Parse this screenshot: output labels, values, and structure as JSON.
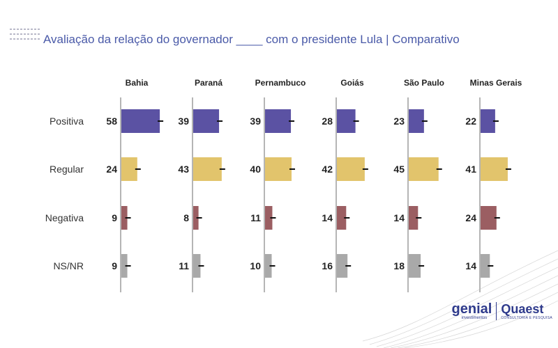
{
  "title": "Avaliação da relação do governador ____ com o presidente Lula | Comparativo",
  "brand": {
    "genial_name": "genial",
    "genial_sub": "investimentos",
    "quaest_name": "Quaest",
    "quaest_sub": "CONSULTORIA E PESQUISA"
  },
  "colors": {
    "Positiva": "#5b52a3",
    "Regular": "#e2c46c",
    "Negativa": "#9b5e62",
    "NS/NR": "#a9a9a9",
    "title": "#4a5aa8",
    "brand": "#2e3a8c"
  },
  "chart_data": {
    "type": "bar",
    "orientation": "horizontal",
    "panels": [
      "Bahia",
      "Paraná",
      "Pernambuco",
      "Goiás",
      "São Paulo",
      "Minas Gerais"
    ],
    "categories": [
      "Positiva",
      "Regular",
      "Negativa",
      "NS/NR"
    ],
    "values": {
      "Bahia": [
        58,
        24,
        9,
        9
      ],
      "Paraná": [
        39,
        43,
        8,
        11
      ],
      "Pernambuco": [
        39,
        40,
        11,
        10
      ],
      "Goiás": [
        28,
        42,
        14,
        16
      ],
      "São Paulo": [
        23,
        45,
        14,
        18
      ],
      "Minas Gerais": [
        22,
        41,
        24,
        14
      ]
    },
    "error_bars": true,
    "xlim": [
      0,
      60
    ],
    "grid": false,
    "legend": "none"
  }
}
